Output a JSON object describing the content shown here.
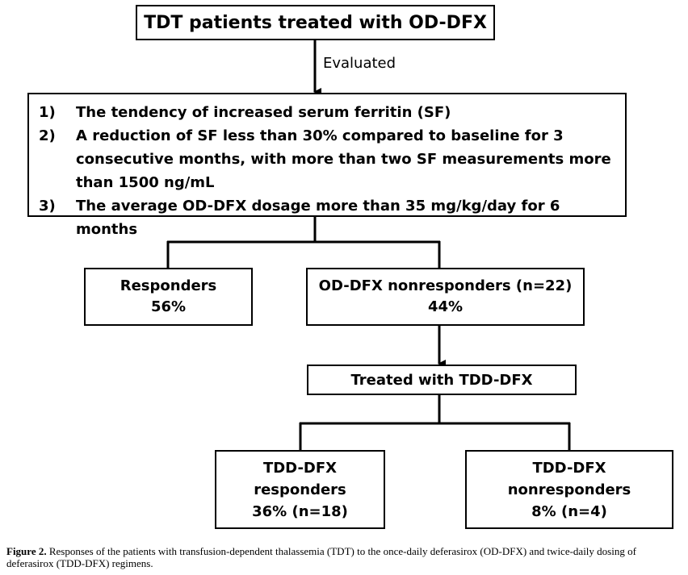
{
  "title": "TDT patients treated with OD-DFX",
  "edge_label": "Evaluated",
  "criteria": [
    {
      "num": "1)",
      "text": "The tendency of increased serum ferritin (SF)"
    },
    {
      "num": "2)",
      "text": "A reduction of SF less than 30% compared to baseline for 3 consecutive months, with more than two SF measurements more than 1500 ng/mL"
    },
    {
      "num": "3)",
      "text": "The average OD-DFX dosage more than 35 mg/kg/day for 6 months"
    }
  ],
  "responders": {
    "line1": "Responders",
    "line2": "56%"
  },
  "nonresponders": {
    "line1": "OD-DFX nonresponders (n=22)",
    "line2": "44%"
  },
  "tdd_treated": "Treated with TDD-DFX",
  "tdd_responders": {
    "line1": "TDD-DFX",
    "line2": "responders",
    "line3": "36% (n=18)"
  },
  "tdd_nonresponders": {
    "line1": "TDD-DFX",
    "line2": "nonresponders",
    "line3": "8% (n=4)"
  },
  "caption": {
    "label": "Figure 2.",
    "text": " Responses of the patients with transfusion-dependent thalassemia (TDT) to the once-daily deferasirox (OD-DFX) and twice-daily dosing of deferasirox (TDD-DFX) regimens."
  }
}
